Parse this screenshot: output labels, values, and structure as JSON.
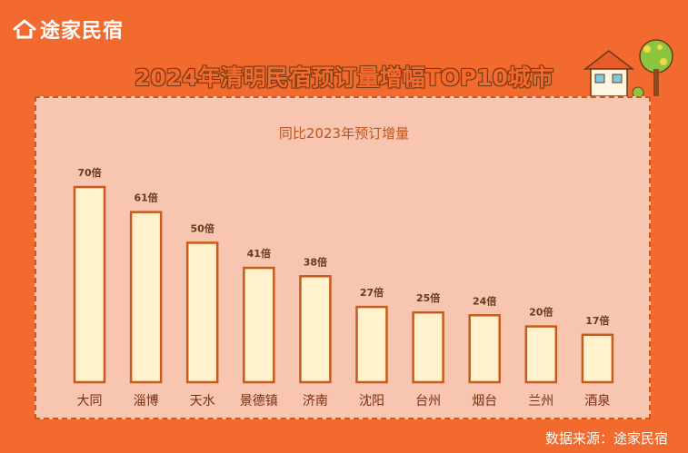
{
  "brand": {
    "name": "途家民宿"
  },
  "header": {
    "title": "2024年清明民宿预订量增幅TOP10城市"
  },
  "chart_data": {
    "type": "bar",
    "title": "2024年清明民宿预订量增幅TOP10城市",
    "subtitle": "同比2023年预订增量",
    "categories": [
      "大同",
      "淄博",
      "天水",
      "景德镇",
      "济南",
      "沈阳",
      "台州",
      "烟台",
      "兰州",
      "酒泉"
    ],
    "values": [
      70,
      61,
      50,
      41,
      38,
      27,
      25,
      24,
      20,
      17
    ],
    "value_suffix": "倍",
    "data_labels": [
      "70倍",
      "61倍",
      "50倍",
      "41倍",
      "38倍",
      "27倍",
      "25倍",
      "24倍",
      "20倍",
      "17倍"
    ],
    "ylim": [
      0,
      70
    ],
    "grid": false,
    "legend": "none",
    "colors": {
      "bar_fill": "#fff2cc",
      "bar_stroke": "#c95a1c",
      "label": "#6b3a1a",
      "category": "#7a2e0e"
    }
  },
  "footer": {
    "source": "数据来源：途家民宿"
  }
}
